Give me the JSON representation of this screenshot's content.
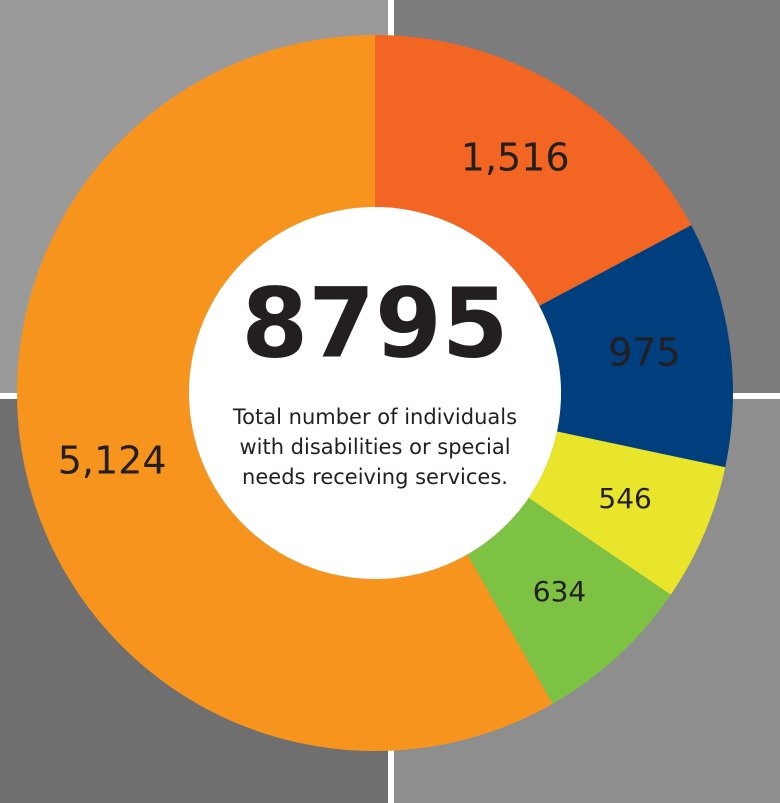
{
  "chart_data": {
    "type": "donut",
    "total": 8795,
    "caption_lines": [
      "Total number of individuals",
      "with disabilities or special",
      "needs receiving services."
    ],
    "categories": [
      null,
      null,
      null,
      null,
      null
    ],
    "values": [
      1516,
      975,
      546,
      634,
      5124
    ],
    "value_labels": [
      "1,516",
      "975",
      "546",
      "634",
      "5,124"
    ],
    "colors": [
      "#f26522",
      "#003f7d",
      "#e8e52a",
      "#7dc242",
      "#f7941d"
    ]
  }
}
